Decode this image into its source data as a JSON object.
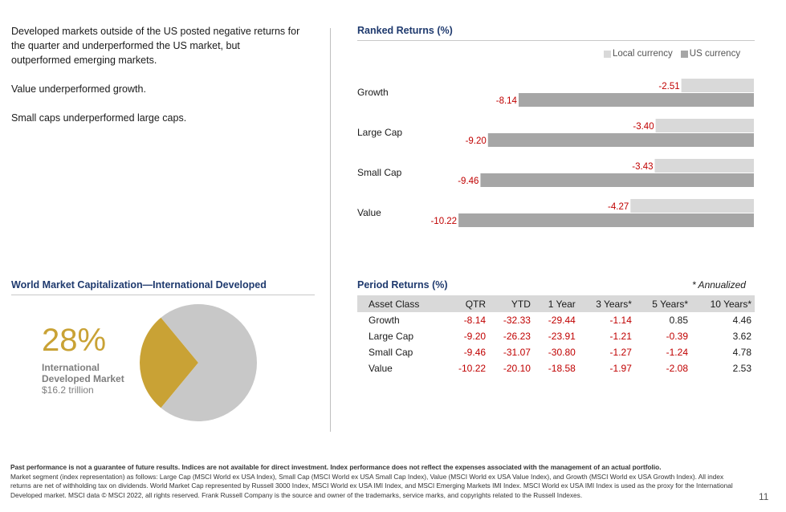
{
  "commentary": [
    "Developed markets outside of the US posted negative returns for the quarter and underperformed the US market, but outperformed emerging markets.",
    "Value underperformed growth.",
    "Small caps underperformed large caps."
  ],
  "ranked_returns": {
    "title": "Ranked Returns (%)",
    "legend_local": "Local currency",
    "legend_usd": "US currency"
  },
  "market_cap": {
    "title": "World Market Capitalization—International Developed",
    "percent": "28%",
    "label_line1": "International",
    "label_line2": "Developed Market",
    "value": "$16.2 trillion"
  },
  "period_returns": {
    "title": "Period Returns (%)",
    "annualized_note": "* Annualized",
    "headers": [
      "Asset Class",
      "QTR",
      "YTD",
      "1 Year",
      "3 Years*",
      "5 Years*",
      "10 Years*"
    ],
    "rows": [
      [
        "Growth",
        "-8.14",
        "-32.33",
        "-29.44",
        "-1.14",
        "0.85",
        "4.46"
      ],
      [
        "Large Cap",
        "-9.20",
        "-26.23",
        "-23.91",
        "-1.21",
        "-0.39",
        "3.62"
      ],
      [
        "Small Cap",
        "-9.46",
        "-31.07",
        "-30.80",
        "-1.27",
        "-1.24",
        "4.78"
      ],
      [
        "Value",
        "-10.22",
        "-20.10",
        "-18.58",
        "-1.97",
        "-2.08",
        "2.53"
      ]
    ]
  },
  "colors": {
    "title_blue": "#1f3a6e",
    "negative_red": "#c00000",
    "local_bar": "#d9d9d9",
    "usd_bar": "#a6a6a6",
    "pie_gold": "#c9a235",
    "pie_gray": "#c8c8c8"
  },
  "chart_data": [
    {
      "type": "bar",
      "orientation": "horizontal",
      "title": "Ranked Returns (%)",
      "categories": [
        "Growth",
        "Large Cap",
        "Small Cap",
        "Value"
      ],
      "series": [
        {
          "name": "Local currency",
          "values": [
            -2.51,
            -3.4,
            -3.43,
            -4.27
          ]
        },
        {
          "name": "US currency",
          "values": [
            -8.14,
            -9.2,
            -9.46,
            -10.22
          ]
        }
      ],
      "xlim": [
        -12,
        0
      ],
      "legend": "top-right",
      "value_labels": [
        [
          "-2.51",
          "-8.14"
        ],
        [
          "-3.40",
          "-9.20"
        ],
        [
          "-3.43",
          "-9.46"
        ],
        [
          "-4.27",
          "-10.22"
        ]
      ]
    },
    {
      "type": "pie",
      "title": "World Market Capitalization—International Developed",
      "slices": [
        {
          "name": "International Developed Market",
          "value": 28
        },
        {
          "name": "",
          "value": 72
        }
      ]
    }
  ],
  "footnote": {
    "bold": "Past performance is not a guarantee of future results. Indices are not available for direct investment. Index performance does not reflect the expenses associated with the management of an actual portfolio.",
    "line2": "Market segment (index representation) as follows: Large Cap (MSCI World ex USA Index), Small Cap (MSCI World ex USA Small Cap Index), Value (MSCI World ex USA Value Index), and Growth (MSCI World ex USA Growth Index). All index returns are net of withholding tax on dividends. World Market Cap represented by Russell 3000 Index, MSCI World ex USA IMI Index, and MSCI Emerging Markets IMI Index. MSCI World ex USA IMI Index is used as the proxy for the International Developed market. MSCI data © MSCI 2022, all rights reserved. Frank Russell Company is the source and owner of the trademarks, service marks, and copyrights related to the Russell Indexes."
  },
  "page_number": "11"
}
